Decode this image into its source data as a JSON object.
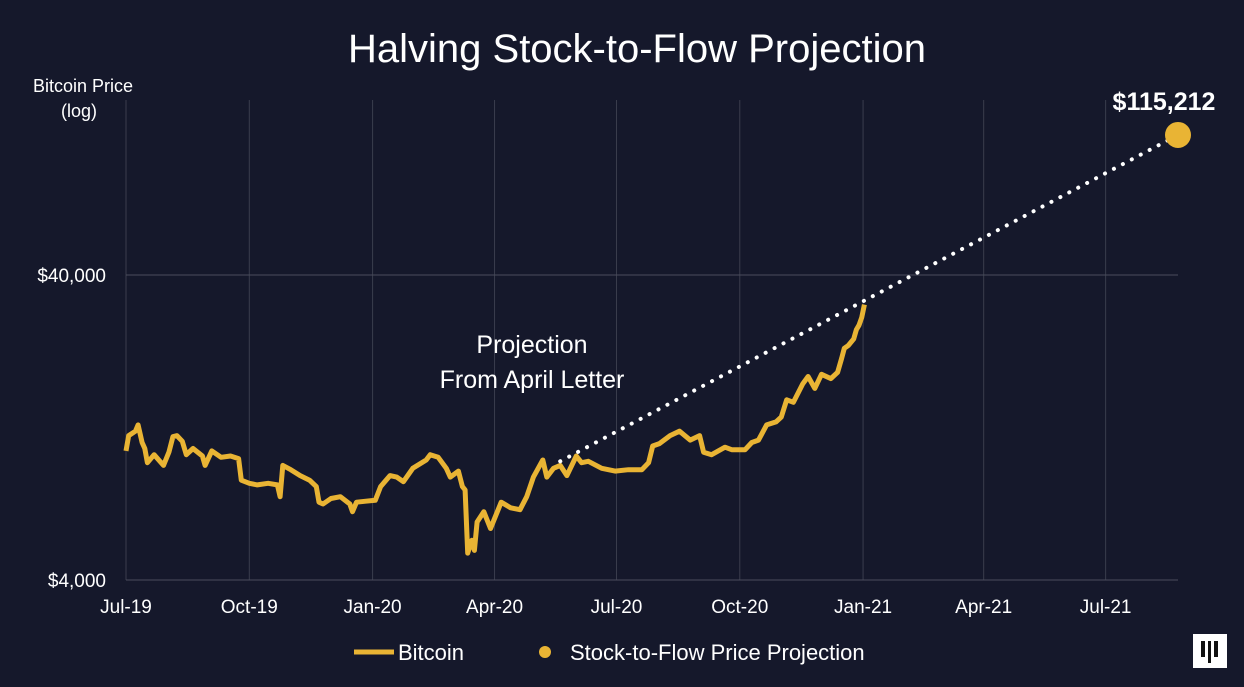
{
  "chart_data": {
    "type": "line",
    "title": "Halving Stock-to-Flow Projection",
    "ylabel": [
      "Bitcoin Price",
      "(log)"
    ],
    "yscale": "log",
    "ylim": [
      4000,
      150000
    ],
    "yticks": [
      {
        "value": 4000,
        "label": "$4,000"
      },
      {
        "value": 40000,
        "label": "$40,000"
      }
    ],
    "xlim": [
      "2019-07-01",
      "2021-08-24"
    ],
    "xticks": [
      {
        "date": "2019-07-01",
        "label": "Jul-19"
      },
      {
        "date": "2019-10-01",
        "label": "Oct-19"
      },
      {
        "date": "2020-01-01",
        "label": "Jan-20"
      },
      {
        "date": "2020-04-01",
        "label": "Apr-20"
      },
      {
        "date": "2020-07-01",
        "label": "Jul-20"
      },
      {
        "date": "2020-10-01",
        "label": "Oct-20"
      },
      {
        "date": "2021-01-01",
        "label": "Jan-21"
      },
      {
        "date": "2021-04-01",
        "label": "Apr-21"
      },
      {
        "date": "2021-07-01",
        "label": "Jul-21"
      }
    ],
    "grid": true,
    "legend_position": "bottom",
    "colors": {
      "background": "#15182b",
      "bitcoin": "#e9b434",
      "projection_line": "#ffffff",
      "projection_point": "#e9b434",
      "grid": "#3a3d4d"
    },
    "series": [
      {
        "name": "Bitcoin",
        "points": [
          [
            "2019-07-01",
            10600
          ],
          [
            "2019-07-03",
            11900
          ],
          [
            "2019-07-08",
            12300
          ],
          [
            "2019-07-10",
            12900
          ],
          [
            "2019-07-13",
            11300
          ],
          [
            "2019-07-15",
            10800
          ],
          [
            "2019-07-17",
            9700
          ],
          [
            "2019-07-22",
            10300
          ],
          [
            "2019-07-29",
            9500
          ],
          [
            "2019-08-02",
            10500
          ],
          [
            "2019-08-05",
            11800
          ],
          [
            "2019-08-08",
            11900
          ],
          [
            "2019-08-12",
            11400
          ],
          [
            "2019-08-15",
            10300
          ],
          [
            "2019-08-20",
            10800
          ],
          [
            "2019-08-27",
            10200
          ],
          [
            "2019-08-29",
            9500
          ],
          [
            "2019-09-03",
            10600
          ],
          [
            "2019-09-10",
            10100
          ],
          [
            "2019-09-17",
            10200
          ],
          [
            "2019-09-23",
            10000
          ],
          [
            "2019-09-25",
            8500
          ],
          [
            "2019-10-01",
            8300
          ],
          [
            "2019-10-07",
            8200
          ],
          [
            "2019-10-15",
            8300
          ],
          [
            "2019-10-22",
            8200
          ],
          [
            "2019-10-24",
            7500
          ],
          [
            "2019-10-26",
            9500
          ],
          [
            "2019-11-01",
            9200
          ],
          [
            "2019-11-08",
            8800
          ],
          [
            "2019-11-15",
            8500
          ],
          [
            "2019-11-20",
            8100
          ],
          [
            "2019-11-22",
            7200
          ],
          [
            "2019-11-25",
            7100
          ],
          [
            "2019-12-01",
            7400
          ],
          [
            "2019-12-08",
            7500
          ],
          [
            "2019-12-15",
            7100
          ],
          [
            "2019-12-17",
            6700
          ],
          [
            "2019-12-20",
            7200
          ],
          [
            "2019-12-27",
            7250
          ],
          [
            "2020-01-03",
            7300
          ],
          [
            "2020-01-07",
            8100
          ],
          [
            "2020-01-14",
            8800
          ],
          [
            "2020-01-19",
            8700
          ],
          [
            "2020-01-24",
            8400
          ],
          [
            "2020-01-31",
            9300
          ],
          [
            "2020-02-05",
            9600
          ],
          [
            "2020-02-10",
            9900
          ],
          [
            "2020-02-13",
            10300
          ],
          [
            "2020-02-19",
            10100
          ],
          [
            "2020-02-25",
            9300
          ],
          [
            "2020-02-28",
            8700
          ],
          [
            "2020-03-05",
            9100
          ],
          [
            "2020-03-08",
            8100
          ],
          [
            "2020-03-10",
            7900
          ],
          [
            "2020-03-12",
            4900
          ],
          [
            "2020-03-15",
            5400
          ],
          [
            "2020-03-17",
            5000
          ],
          [
            "2020-03-19",
            6200
          ],
          [
            "2020-03-24",
            6700
          ],
          [
            "2020-03-29",
            5900
          ],
          [
            "2020-04-06",
            7200
          ],
          [
            "2020-04-13",
            6900
          ],
          [
            "2020-04-20",
            6800
          ],
          [
            "2020-04-25",
            7500
          ],
          [
            "2020-04-30",
            8700
          ],
          [
            "2020-05-07",
            9900
          ],
          [
            "2020-05-10",
            8700
          ],
          [
            "2020-05-15",
            9300
          ],
          [
            "2020-05-20",
            9500
          ],
          [
            "2020-05-25",
            8800
          ],
          [
            "2020-06-01",
            10200
          ],
          [
            "2020-06-05",
            9700
          ],
          [
            "2020-06-10",
            9800
          ],
          [
            "2020-06-20",
            9300
          ],
          [
            "2020-06-30",
            9100
          ],
          [
            "2020-07-10",
            9200
          ],
          [
            "2020-07-20",
            9200
          ],
          [
            "2020-07-25",
            9700
          ],
          [
            "2020-07-28",
            11000
          ],
          [
            "2020-08-02",
            11200
          ],
          [
            "2020-08-10",
            11900
          ],
          [
            "2020-08-17",
            12300
          ],
          [
            "2020-08-25",
            11500
          ],
          [
            "2020-09-01",
            11900
          ],
          [
            "2020-09-04",
            10500
          ],
          [
            "2020-09-10",
            10300
          ],
          [
            "2020-09-20",
            10900
          ],
          [
            "2020-09-25",
            10700
          ],
          [
            "2020-10-05",
            10700
          ],
          [
            "2020-10-10",
            11300
          ],
          [
            "2020-10-15",
            11500
          ],
          [
            "2020-10-21",
            12900
          ],
          [
            "2020-10-28",
            13200
          ],
          [
            "2020-11-01",
            13700
          ],
          [
            "2020-11-05",
            15600
          ],
          [
            "2020-11-10",
            15300
          ],
          [
            "2020-11-17",
            17600
          ],
          [
            "2020-11-21",
            18600
          ],
          [
            "2020-11-26",
            17000
          ],
          [
            "2020-12-01",
            18900
          ],
          [
            "2020-12-08",
            18300
          ],
          [
            "2020-12-13",
            19200
          ],
          [
            "2020-12-16",
            21300
          ],
          [
            "2020-12-18",
            23000
          ],
          [
            "2020-12-21",
            23500
          ],
          [
            "2020-12-25",
            24700
          ],
          [
            "2020-12-27",
            26500
          ],
          [
            "2020-12-29",
            27400
          ],
          [
            "2020-12-31",
            29000
          ],
          [
            "2021-01-02",
            32000
          ]
        ]
      },
      {
        "name": "Stock-to-Flow Price Projection",
        "style": "dotted",
        "points": [
          [
            "2020-05-20",
            9800
          ],
          [
            "2021-08-24",
            115212
          ]
        ],
        "endpoint_label": "$115,212"
      }
    ],
    "annotations": [
      {
        "text": [
          "Projection",
          "From April Letter"
        ]
      }
    ]
  },
  "logo": "Pantera"
}
